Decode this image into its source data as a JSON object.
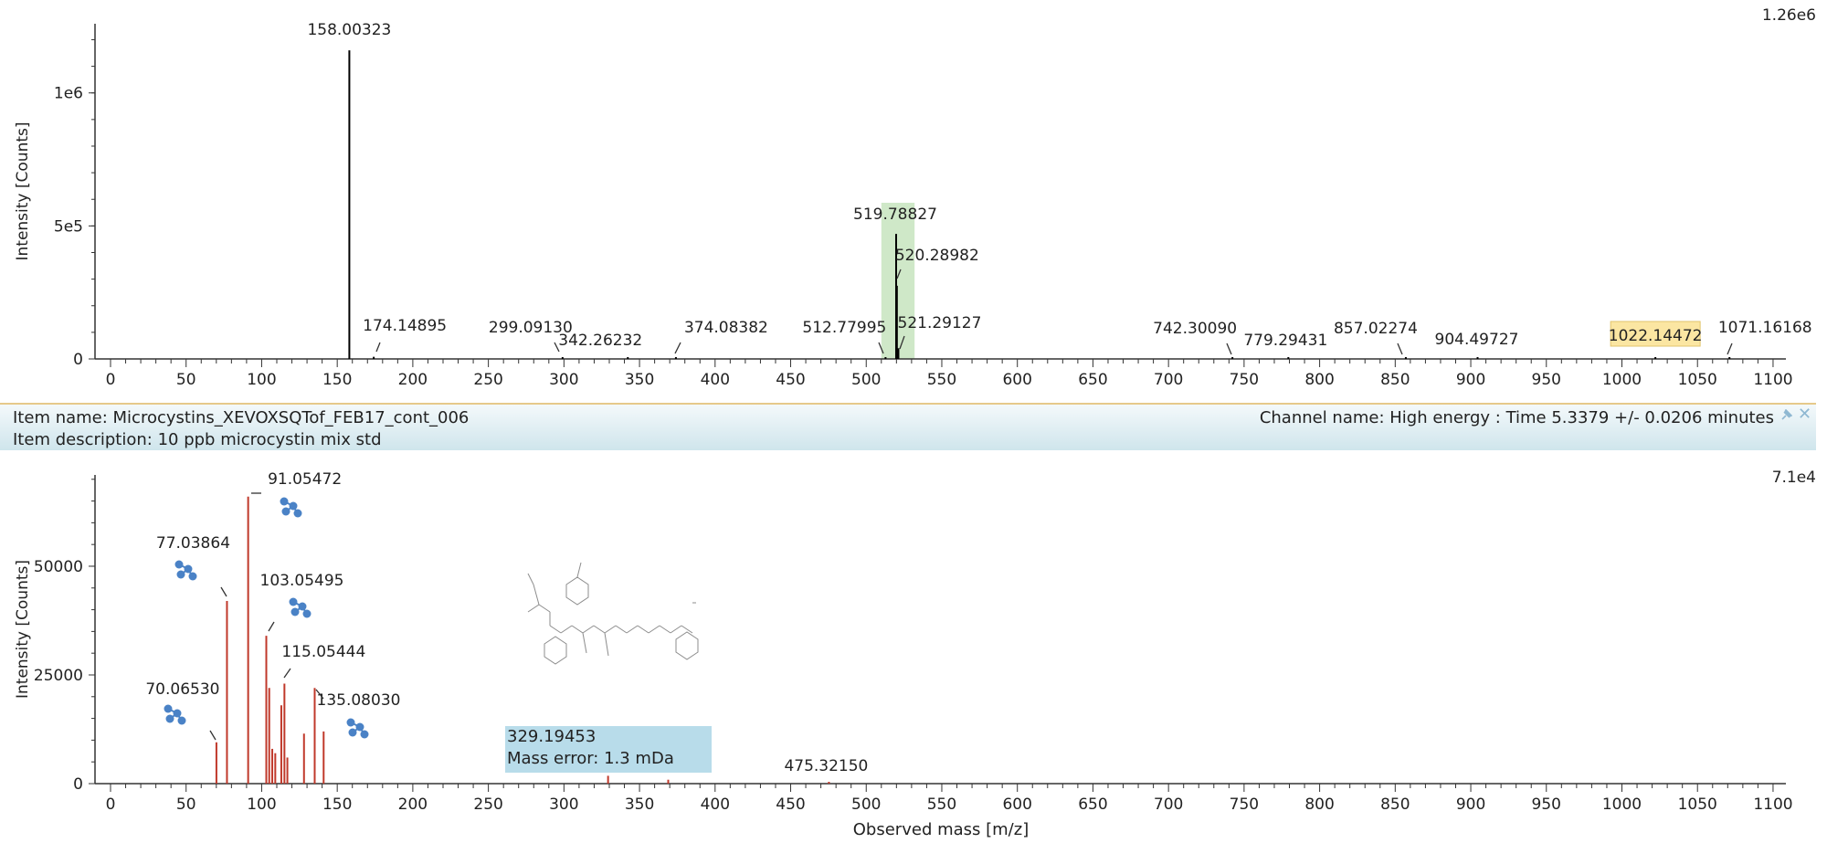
{
  "info_bar": {
    "item_name": "Item name: Microcystins_XEVOXSQTof_FEB17_cont_006",
    "item_description": "Item description: 10 ppb microcystin mix std",
    "channel_name": "Channel name: High energy : Time 5.3379 +/- 0.0206 minutes"
  },
  "tooltip": {
    "mass": "329.19453",
    "error": "Mass error: 1.3 mDa"
  },
  "colors": {
    "top_peaks": "#000000",
    "bottom_peaks": "#c0392b",
    "highlight": "#cfe8c8",
    "label_highlight": "#fbe6a2",
    "fragment_icon": "#4a82c6"
  },
  "chart_data": [
    {
      "type": "bar",
      "ylabel": "Intensity [Counts]",
      "max_label": "1.26e6",
      "xlim": [
        -10,
        1110
      ],
      "ylim": [
        0,
        1260000
      ],
      "xticks": [
        0,
        50,
        100,
        150,
        200,
        250,
        300,
        350,
        400,
        450,
        500,
        550,
        600,
        650,
        700,
        750,
        800,
        850,
        900,
        950,
        1000,
        1050,
        1100
      ],
      "yticks": [
        {
          "value": 0,
          "label": "0"
        },
        {
          "value": 500000,
          "label": "5e5"
        },
        {
          "value": 1000000,
          "label": "1e6"
        }
      ],
      "highlight_x": [
        510,
        532
      ],
      "peaks": [
        {
          "mz": 158.00323,
          "intensity": 1160000,
          "label": "158.00323"
        },
        {
          "mz": 174.14895,
          "intensity": 8000,
          "label": "174.14895"
        },
        {
          "mz": 299.0913,
          "intensity": 5000,
          "label": "299.09130"
        },
        {
          "mz": 342.26232,
          "intensity": 4000,
          "label": "342.26232"
        },
        {
          "mz": 374.08382,
          "intensity": 5000,
          "label": "374.08382"
        },
        {
          "mz": 512.77995,
          "intensity": 5000,
          "label": "512.77995"
        },
        {
          "mz": 519.78827,
          "intensity": 470000,
          "label": "519.78827"
        },
        {
          "mz": 520.28982,
          "intensity": 275000,
          "label": "520.28982"
        },
        {
          "mz": 521.29127,
          "intensity": 40000,
          "label": "521.29127"
        },
        {
          "mz": 742.3009,
          "intensity": 3000,
          "label": "742.30090"
        },
        {
          "mz": 779.29431,
          "intensity": 3000,
          "label": "779.29431"
        },
        {
          "mz": 857.02274,
          "intensity": 3000,
          "label": "857.02274"
        },
        {
          "mz": 904.49727,
          "intensity": 3000,
          "label": "904.49727"
        },
        {
          "mz": 1022.14472,
          "intensity": 3000,
          "label": "1022.14472"
        },
        {
          "mz": 1071.16168,
          "intensity": 3000,
          "label": "1071.16168"
        }
      ]
    },
    {
      "type": "bar",
      "xlabel": "Observed mass [m/z]",
      "ylabel": "Intensity [Counts]",
      "max_label": "7.1e4",
      "xlim": [
        -10,
        1110
      ],
      "ylim": [
        0,
        71000
      ],
      "xticks": [
        0,
        50,
        100,
        150,
        200,
        250,
        300,
        350,
        400,
        450,
        500,
        550,
        600,
        650,
        700,
        750,
        800,
        850,
        900,
        950,
        1000,
        1050,
        1100
      ],
      "yticks": [
        {
          "value": 0,
          "label": "0"
        },
        {
          "value": 25000,
          "label": "25000"
        },
        {
          "value": 50000,
          "label": "50000"
        }
      ],
      "peaks": [
        {
          "mz": 70.0653,
          "intensity": 9500,
          "label": "70.06530"
        },
        {
          "mz": 77.03864,
          "intensity": 42000,
          "label": "77.03864"
        },
        {
          "mz": 91.05472,
          "intensity": 66000,
          "label": "91.05472"
        },
        {
          "mz": 103.05495,
          "intensity": 34000,
          "label": "103.05495"
        },
        {
          "mz": 105,
          "intensity": 22000
        },
        {
          "mz": 107,
          "intensity": 8000
        },
        {
          "mz": 109,
          "intensity": 7000
        },
        {
          "mz": 113,
          "intensity": 18000
        },
        {
          "mz": 115.05444,
          "intensity": 23000,
          "label": "115.05444"
        },
        {
          "mz": 117,
          "intensity": 6000
        },
        {
          "mz": 128,
          "intensity": 11500
        },
        {
          "mz": 135.0803,
          "intensity": 22000,
          "label": "135.08030"
        },
        {
          "mz": 141,
          "intensity": 12000
        },
        {
          "mz": 329.19453,
          "intensity": 1800
        },
        {
          "mz": 369,
          "intensity": 900
        },
        {
          "mz": 475.3215,
          "intensity": 400,
          "label": "475.32150"
        }
      ]
    }
  ]
}
